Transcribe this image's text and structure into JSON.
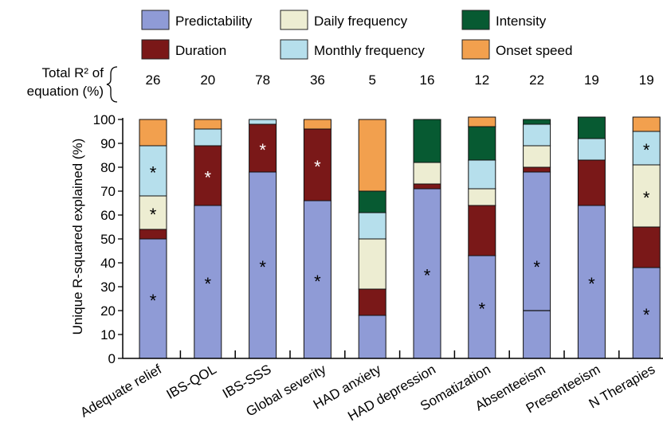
{
  "chart_data": {
    "type": "bar",
    "stacked": true,
    "ylabel": "Unique R-squared explained (%)",
    "ylim": [
      0,
      100
    ],
    "yticks": [
      0,
      10,
      20,
      30,
      40,
      50,
      60,
      70,
      80,
      90,
      100
    ],
    "legend": {
      "placement": "top",
      "entries": [
        {
          "name": "Predictability",
          "color": "#8f9bd6"
        },
        {
          "name": "Daily frequency",
          "color": "#ededd2"
        },
        {
          "name": "Intensity",
          "color": "#075a32"
        },
        {
          "name": "Duration",
          "color": "#7a1818"
        },
        {
          "name": "Monthly frequency",
          "color": "#b6dfec"
        },
        {
          "name": "Onset speed",
          "color": "#f2a04e"
        }
      ]
    },
    "total_r2": {
      "label_line1": "Total R² of",
      "label_line2": "equation (%)",
      "values": [
        "26",
        "20",
        "78",
        "36",
        "5",
        "16",
        "12",
        "22",
        "19",
        "19"
      ]
    },
    "categories": [
      "Adequate relief",
      "IBS-QOL",
      "IBS-SSS",
      "Global severity",
      "HAD anxiety",
      "HAD depression",
      "Somatization",
      "Absenteeism",
      "Presenteeism",
      "N Therapies"
    ],
    "series": [
      {
        "name": "Predictability",
        "color": "#8f9bd6",
        "values": [
          50,
          64,
          78,
          66,
          18,
          71,
          43,
          78,
          64,
          38
        ],
        "significant": [
          true,
          true,
          true,
          true,
          false,
          true,
          true,
          true,
          true,
          true
        ]
      },
      {
        "name": "Duration",
        "color": "#7a1818",
        "values": [
          4,
          25,
          20,
          30,
          11,
          2,
          21,
          2,
          19,
          17
        ],
        "significant": [
          false,
          true,
          true,
          true,
          false,
          false,
          false,
          false,
          false,
          false
        ]
      },
      {
        "name": "Daily frequency",
        "color": "#ededd2",
        "values": [
          14,
          0,
          0,
          0,
          21,
          9,
          7,
          9,
          0,
          26
        ],
        "significant": [
          true,
          false,
          false,
          false,
          false,
          false,
          false,
          false,
          false,
          true
        ]
      },
      {
        "name": "Monthly frequency",
        "color": "#b6dfec",
        "values": [
          21,
          7,
          2,
          0,
          11,
          0,
          12,
          9,
          9,
          14
        ],
        "significant": [
          true,
          false,
          false,
          false,
          false,
          false,
          false,
          false,
          false,
          true
        ]
      },
      {
        "name": "Intensity",
        "color": "#075a32",
        "values": [
          0,
          0,
          0,
          0,
          9,
          18,
          14,
          2,
          9,
          0
        ],
        "significant": [
          false,
          false,
          false,
          false,
          false,
          false,
          false,
          false,
          false,
          false
        ]
      },
      {
        "name": "Onset speed",
        "color": "#f2a04e",
        "values": [
          11,
          4,
          0,
          4,
          30,
          0,
          4,
          0,
          0,
          6
        ],
        "significant": [
          false,
          false,
          false,
          false,
          false,
          false,
          false,
          false,
          false,
          false
        ]
      }
    ],
    "significance_marker": "*",
    "absenteeism_divider_at": 20,
    "grid": false
  }
}
